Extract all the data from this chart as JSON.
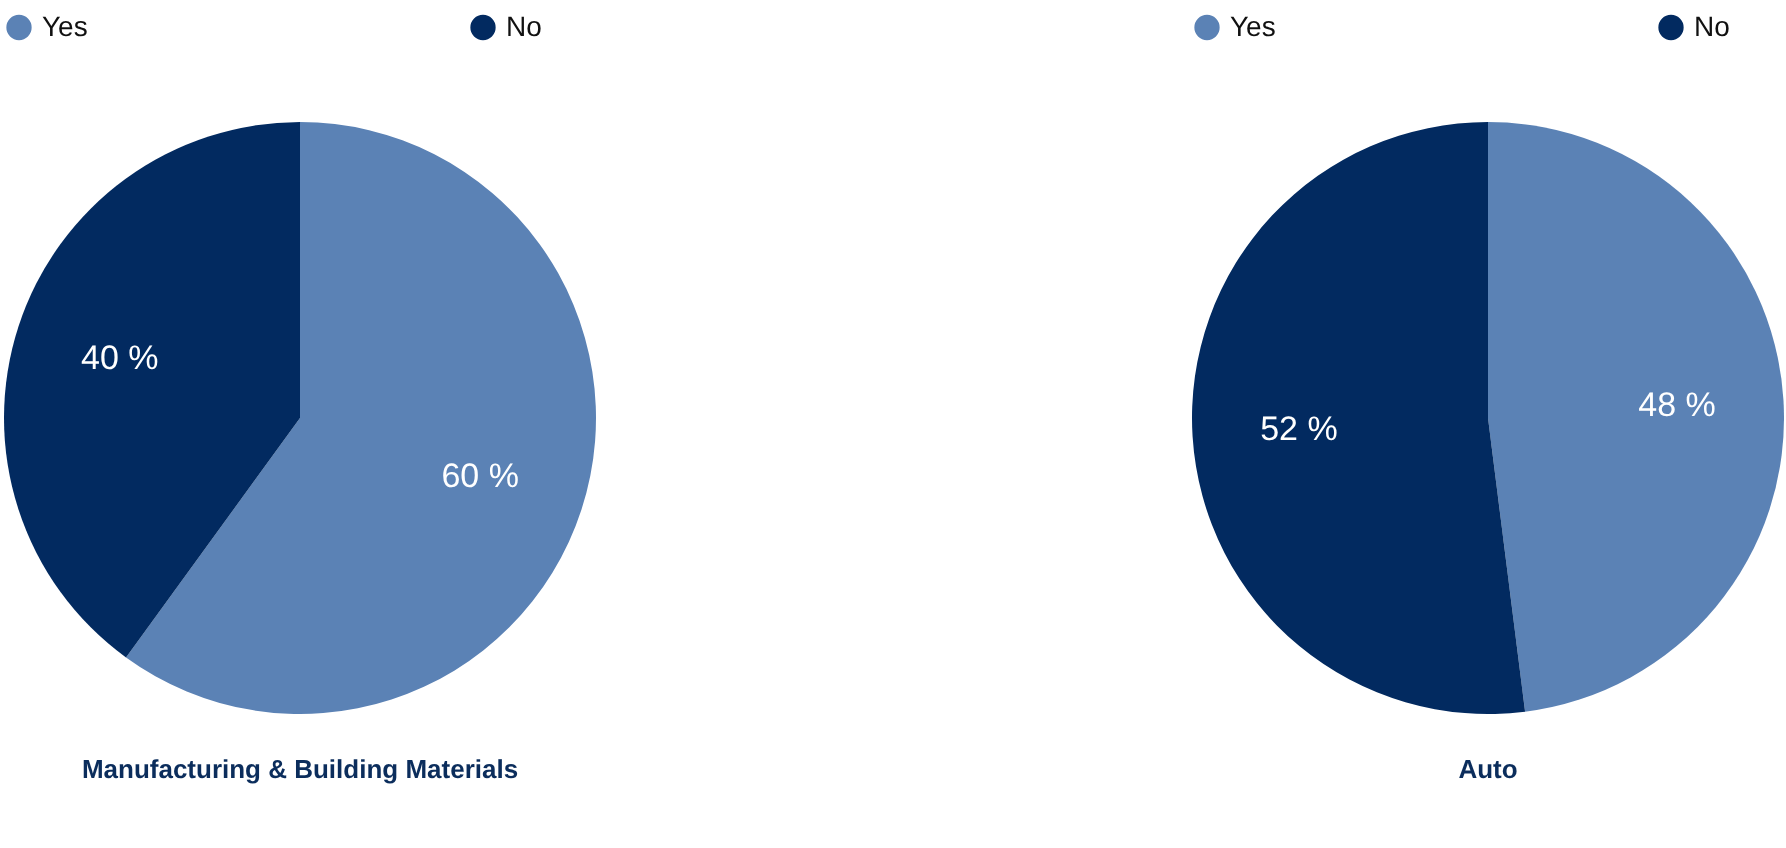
{
  "chart_data": [
    {
      "type": "pie",
      "title": "Manufacturing & Building Materials",
      "categories": [
        "Yes",
        "No"
      ],
      "values": [
        60,
        40
      ],
      "colors": [
        "#5b82b5",
        "#022a60"
      ],
      "value_labels": [
        "60 %",
        "40 %"
      ],
      "legend": "top"
    },
    {
      "type": "pie",
      "title": "Auto",
      "categories": [
        "Yes",
        "No"
      ],
      "values": [
        48,
        52
      ],
      "colors": [
        "#5b82b5",
        "#022a60"
      ],
      "value_labels": [
        "48 %",
        "52 %"
      ],
      "legend": "top"
    }
  ]
}
